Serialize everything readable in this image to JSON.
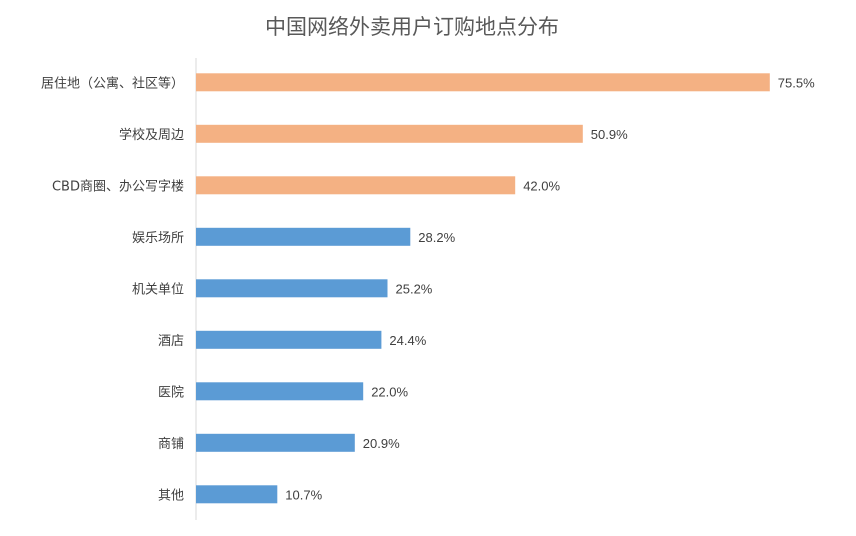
{
  "chart_data": {
    "type": "bar",
    "orientation": "horizontal",
    "title": "中国网络外卖用户订购地点分布",
    "categories": [
      "居住地（公寓、社区等）",
      "学校及周边",
      "CBD商圈、办公写字楼",
      "娱乐场所",
      "机关单位",
      "酒店",
      "医院",
      "商铺",
      "其他"
    ],
    "values": [
      75.5,
      50.9,
      42.0,
      28.2,
      25.2,
      24.4,
      22.0,
      20.9,
      10.7
    ],
    "labels": [
      "75.5%",
      "50.9%",
      "42.0%",
      "28.2%",
      "25.2%",
      "24.4%",
      "22.0%",
      "20.9%",
      "10.7%"
    ],
    "colors": [
      "#F4B183",
      "#F4B183",
      "#F4B183",
      "#5B9BD5",
      "#5B9BD5",
      "#5B9BD5",
      "#5B9BD5",
      "#5B9BD5",
      "#5B9BD5"
    ],
    "xlim": [
      0,
      80
    ],
    "grid": false,
    "legend": "none"
  }
}
